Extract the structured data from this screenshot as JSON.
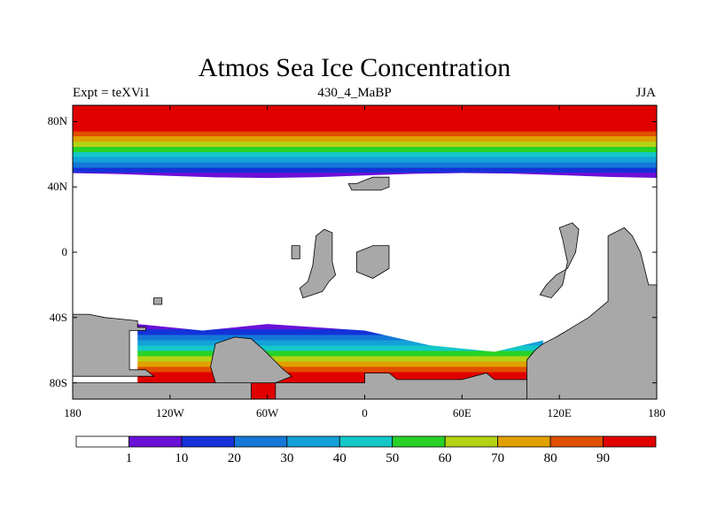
{
  "title": "Atmos Sea Ice Concentration",
  "subtitle_left": "Expt = teXVi1",
  "subtitle_center": "430_4_MaBP",
  "subtitle_right": "JJA",
  "lat_ticks": [
    {
      "value": 80,
      "label": "80N"
    },
    {
      "value": 40,
      "label": "40N"
    },
    {
      "value": 0,
      "label": "0"
    },
    {
      "value": -40,
      "label": "40S"
    },
    {
      "value": -80,
      "label": "80S"
    }
  ],
  "lon_ticks": [
    {
      "value": -180,
      "label": "180"
    },
    {
      "value": -120,
      "label": "120W"
    },
    {
      "value": -60,
      "label": "60W"
    },
    {
      "value": 0,
      "label": "0"
    },
    {
      "value": 60,
      "label": "60E"
    },
    {
      "value": 120,
      "label": "120E"
    },
    {
      "value": 180,
      "label": "180"
    }
  ],
  "colorbar": {
    "colors": [
      "#ffffff",
      "#6a10d8",
      "#1432d8",
      "#1478d8",
      "#14a0d8",
      "#14c8c8",
      "#28d228",
      "#b4d214",
      "#e0a000",
      "#e05000",
      "#e00000"
    ],
    "labels": [
      "1",
      "10",
      "20",
      "30",
      "40",
      "50",
      "60",
      "70",
      "80",
      "90"
    ]
  },
  "land_color": "#a8a8a8",
  "chart_data": {
    "type": "heatmap",
    "title": "Atmos Sea Ice Concentration",
    "variable": "sea ice concentration (%)",
    "season": "JJA",
    "experiment": "teXVi1",
    "period": "430_4_MaBP",
    "lon_range": [
      -180,
      180
    ],
    "lat_range": [
      -90,
      90
    ],
    "levels": [
      1,
      10,
      20,
      30,
      40,
      50,
      60,
      70,
      80,
      90
    ],
    "northern_ice_edge_lat": 47,
    "north_full_cover_lat": 67,
    "southern_ice_edge_by_lon": [
      {
        "lon": -140,
        "lat": -44
      },
      {
        "lon": -100,
        "lat": -48
      },
      {
        "lon": -60,
        "lat": -44
      },
      {
        "lon": 0,
        "lat": -48
      },
      {
        "lon": 40,
        "lat": -57
      },
      {
        "lon": 80,
        "lat": -61
      },
      {
        "lon": 110,
        "lat": -54
      }
    ]
  }
}
